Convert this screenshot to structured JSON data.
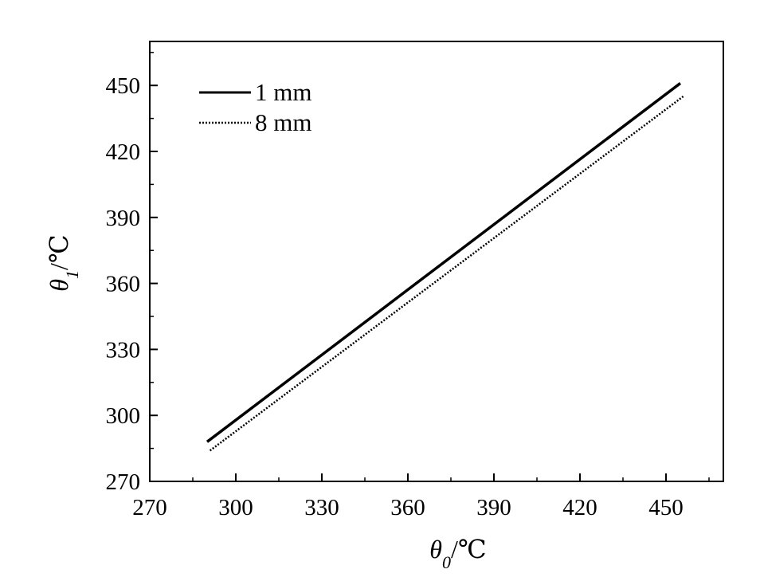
{
  "chart_data": {
    "type": "line",
    "title": "",
    "xlabel": {
      "symbol": "θ",
      "sub": "0",
      "unit": "/℃"
    },
    "ylabel": {
      "symbol": "θ",
      "sub": "1",
      "unit": "/℃"
    },
    "xlim": [
      270,
      470
    ],
    "ylim": [
      270,
      470
    ],
    "xticks": [
      "270",
      "300",
      "330",
      "360",
      "390",
      "420",
      "450"
    ],
    "yticks": [
      "270",
      "300",
      "330",
      "360",
      "390",
      "420",
      "450"
    ],
    "grid": false,
    "legend_position": "top-left",
    "series": [
      {
        "name": "1 mm",
        "style": "solid",
        "color": "#000000",
        "x": [
          290,
          455
        ],
        "y": [
          288,
          451
        ]
      },
      {
        "name": "8 mm",
        "style": "dotted",
        "color": "#000000",
        "x": [
          291,
          456
        ],
        "y": [
          284,
          445
        ]
      }
    ]
  }
}
